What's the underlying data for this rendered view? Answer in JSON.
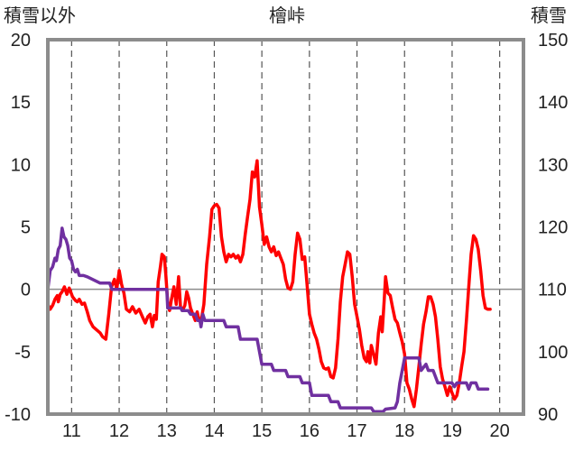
{
  "chart_data": {
    "type": "line",
    "title": "檜峠",
    "left_axis_label": "積雪以外",
    "right_axis_label": "積雪",
    "x_ticks": [
      "11",
      "12",
      "13",
      "14",
      "15",
      "16",
      "17",
      "18",
      "19",
      "20"
    ],
    "x_range": [
      10.5,
      20.5
    ],
    "y_left": {
      "range": [
        -10,
        20
      ],
      "ticks": [
        -10,
        -5,
        0,
        5,
        10,
        15,
        20
      ]
    },
    "y_right": {
      "range": [
        90,
        150
      ],
      "ticks": [
        90,
        100,
        110,
        120,
        130,
        140,
        150
      ]
    },
    "grid": {
      "vertical_dashed": true,
      "zero_line": true
    },
    "series": [
      {
        "axis": "left",
        "color": "#ff0000",
        "points": [
          [
            10.5,
            -1.2
          ],
          [
            10.55,
            -1.6
          ],
          [
            10.6,
            -1.3
          ],
          [
            10.65,
            -0.8
          ],
          [
            10.7,
            -0.5
          ],
          [
            10.72,
            -1.0
          ],
          [
            10.76,
            -0.4
          ],
          [
            10.8,
            -0.2
          ],
          [
            10.85,
            0.2
          ],
          [
            10.9,
            -0.4
          ],
          [
            10.95,
            0.1
          ],
          [
            10.98,
            -0.2
          ],
          [
            11.02,
            -0.6
          ],
          [
            11.08,
            -0.9
          ],
          [
            11.12,
            -1.0
          ],
          [
            11.16,
            -0.8
          ],
          [
            11.22,
            -1.2
          ],
          [
            11.27,
            -1.1
          ],
          [
            11.33,
            -1.8
          ],
          [
            11.38,
            -2.5
          ],
          [
            11.45,
            -3.0
          ],
          [
            11.6,
            -3.5
          ],
          [
            11.65,
            -3.8
          ],
          [
            11.72,
            -4.0
          ],
          [
            11.78,
            -2.0
          ],
          [
            11.84,
            0.2
          ],
          [
            11.9,
            0.8
          ],
          [
            11.95,
            0.0
          ],
          [
            12.0,
            1.5
          ],
          [
            12.05,
            0.4
          ],
          [
            12.1,
            -0.3
          ],
          [
            12.15,
            -1.6
          ],
          [
            12.22,
            -1.8
          ],
          [
            12.28,
            -1.4
          ],
          [
            12.35,
            -1.9
          ],
          [
            12.42,
            -1.6
          ],
          [
            12.5,
            -2.3
          ],
          [
            12.55,
            -2.7
          ],
          [
            12.6,
            -2.2
          ],
          [
            12.65,
            -2.0
          ],
          [
            12.7,
            -3.0
          ],
          [
            12.74,
            -2.1
          ],
          [
            12.78,
            -2.4
          ],
          [
            12.82,
            0.6
          ],
          [
            12.87,
            1.9
          ],
          [
            12.9,
            2.8
          ],
          [
            12.95,
            2.6
          ],
          [
            12.98,
            1.2
          ],
          [
            13.02,
            -1.0
          ],
          [
            13.06,
            -1.7
          ],
          [
            13.1,
            -0.8
          ],
          [
            13.15,
            0.2
          ],
          [
            13.2,
            -1.2
          ],
          [
            13.25,
            1.0
          ],
          [
            13.29,
            -1.4
          ],
          [
            13.33,
            -1.7
          ],
          [
            13.38,
            -1.3
          ],
          [
            13.42,
            -0.2
          ],
          [
            13.46,
            -0.7
          ],
          [
            13.5,
            -1.5
          ],
          [
            13.55,
            -2.0
          ],
          [
            13.6,
            -2.5
          ],
          [
            13.64,
            -1.8
          ],
          [
            13.68,
            -2.5
          ],
          [
            13.72,
            -2.6
          ],
          [
            13.78,
            -1.2
          ],
          [
            13.84,
            2.0
          ],
          [
            13.9,
            4.2
          ],
          [
            13.95,
            6.4
          ],
          [
            14.0,
            6.7
          ],
          [
            14.05,
            6.8
          ],
          [
            14.1,
            6.5
          ],
          [
            14.15,
            4.2
          ],
          [
            14.2,
            3.0
          ],
          [
            14.25,
            2.2
          ],
          [
            14.3,
            2.8
          ],
          [
            14.35,
            2.6
          ],
          [
            14.4,
            2.8
          ],
          [
            14.45,
            2.5
          ],
          [
            14.5,
            2.7
          ],
          [
            14.55,
            2.2
          ],
          [
            14.6,
            2.8
          ],
          [
            14.65,
            4.4
          ],
          [
            14.7,
            5.8
          ],
          [
            14.75,
            7.2
          ],
          [
            14.8,
            9.4
          ],
          [
            14.85,
            9.0
          ],
          [
            14.9,
            10.3
          ],
          [
            14.95,
            6.6
          ],
          [
            15.0,
            5.2
          ],
          [
            15.05,
            3.6
          ],
          [
            15.1,
            4.2
          ],
          [
            15.15,
            3.4
          ],
          [
            15.2,
            3.0
          ],
          [
            15.25,
            3.4
          ],
          [
            15.3,
            2.7
          ],
          [
            15.35,
            3.0
          ],
          [
            15.4,
            2.5
          ],
          [
            15.45,
            2.0
          ],
          [
            15.5,
            0.8
          ],
          [
            15.55,
            0.1
          ],
          [
            15.6,
            0.0
          ],
          [
            15.65,
            0.6
          ],
          [
            15.7,
            2.8
          ],
          [
            15.75,
            4.5
          ],
          [
            15.8,
            4.0
          ],
          [
            15.85,
            2.4
          ],
          [
            15.9,
            2.6
          ],
          [
            15.95,
            0.4
          ],
          [
            16.0,
            -2.0
          ],
          [
            16.05,
            -2.8
          ],
          [
            16.1,
            -3.5
          ],
          [
            16.15,
            -4.0
          ],
          [
            16.2,
            -4.8
          ],
          [
            16.25,
            -5.8
          ],
          [
            16.3,
            -6.3
          ],
          [
            16.35,
            -6.4
          ],
          [
            16.4,
            -6.3
          ],
          [
            16.45,
            -7.0
          ],
          [
            16.5,
            -7.1
          ],
          [
            16.55,
            -6.3
          ],
          [
            16.6,
            -4.0
          ],
          [
            16.65,
            -1.0
          ],
          [
            16.7,
            1.0
          ],
          [
            16.75,
            2.0
          ],
          [
            16.8,
            3.0
          ],
          [
            16.85,
            2.8
          ],
          [
            16.9,
            1.0
          ],
          [
            16.95,
            -1.2
          ],
          [
            17.0,
            -2.2
          ],
          [
            17.05,
            -3.2
          ],
          [
            17.1,
            -4.5
          ],
          [
            17.15,
            -5.5
          ],
          [
            17.2,
            -5.8
          ],
          [
            17.23,
            -5.0
          ],
          [
            17.27,
            -5.9
          ],
          [
            17.3,
            -4.5
          ],
          [
            17.35,
            -5.2
          ],
          [
            17.4,
            -6.0
          ],
          [
            17.45,
            -3.5
          ],
          [
            17.5,
            -2.2
          ],
          [
            17.53,
            -3.4
          ],
          [
            17.57,
            -1.0
          ],
          [
            17.6,
            1.0
          ],
          [
            17.65,
            -0.3
          ],
          [
            17.7,
            -0.5
          ],
          [
            17.75,
            -1.5
          ],
          [
            17.8,
            -2.4
          ],
          [
            17.85,
            -2.7
          ],
          [
            17.9,
            -3.5
          ],
          [
            17.95,
            -4.2
          ],
          [
            18.0,
            -5.2
          ],
          [
            18.05,
            -7.5
          ],
          [
            18.1,
            -8.0
          ],
          [
            18.15,
            -8.8
          ],
          [
            18.2,
            -9.4
          ],
          [
            18.25,
            -8.0
          ],
          [
            18.3,
            -6.2
          ],
          [
            18.35,
            -4.4
          ],
          [
            18.4,
            -2.8
          ],
          [
            18.45,
            -1.8
          ],
          [
            18.5,
            -0.6
          ],
          [
            18.55,
            -0.6
          ],
          [
            18.6,
            -1.2
          ],
          [
            18.65,
            -2.2
          ],
          [
            18.7,
            -4.0
          ],
          [
            18.75,
            -6.2
          ],
          [
            18.8,
            -7.2
          ],
          [
            18.85,
            -7.8
          ],
          [
            18.9,
            -8.5
          ],
          [
            18.95,
            -7.8
          ],
          [
            19.0,
            -8.3
          ],
          [
            19.05,
            -8.8
          ],
          [
            19.1,
            -8.5
          ],
          [
            19.15,
            -7.5
          ],
          [
            19.2,
            -6.2
          ],
          [
            19.25,
            -5.0
          ],
          [
            19.3,
            -2.5
          ],
          [
            19.35,
            0.2
          ],
          [
            19.4,
            2.8
          ],
          [
            19.45,
            4.3
          ],
          [
            19.5,
            4.0
          ],
          [
            19.55,
            3.2
          ],
          [
            19.6,
            1.5
          ],
          [
            19.65,
            -0.5
          ],
          [
            19.7,
            -1.5
          ],
          [
            19.75,
            -1.6
          ],
          [
            19.8,
            -1.6
          ]
        ]
      },
      {
        "axis": "left",
        "color": "#7030a0",
        "points": [
          [
            10.5,
            0.0
          ],
          [
            10.55,
            1.5
          ],
          [
            10.6,
            1.8
          ],
          [
            10.65,
            2.5
          ],
          [
            10.68,
            2.3
          ],
          [
            10.72,
            3.2
          ],
          [
            10.76,
            3.5
          ],
          [
            10.8,
            4.9
          ],
          [
            10.84,
            4.2
          ],
          [
            10.88,
            4.0
          ],
          [
            10.92,
            3.5
          ],
          [
            10.96,
            2.5
          ],
          [
            11.0,
            2.3
          ],
          [
            11.04,
            1.6
          ],
          [
            11.08,
            1.4
          ],
          [
            11.12,
            1.6
          ],
          [
            11.16,
            1.1
          ],
          [
            11.2,
            1.1
          ],
          [
            11.25,
            1.1
          ],
          [
            11.33,
            1.0
          ],
          [
            11.6,
            0.5
          ],
          [
            11.7,
            0.5
          ],
          [
            11.8,
            0.5
          ],
          [
            11.85,
            0.0
          ],
          [
            13.0,
            0.0
          ],
          [
            13.02,
            -1.5
          ],
          [
            13.3,
            -1.5
          ],
          [
            13.32,
            -1.7
          ],
          [
            13.45,
            -1.7
          ],
          [
            13.5,
            -2.0
          ],
          [
            13.6,
            -2.0
          ],
          [
            13.65,
            -2.5
          ],
          [
            13.7,
            -2.5
          ],
          [
            13.72,
            -3.0
          ],
          [
            13.76,
            -2.0
          ],
          [
            13.8,
            -2.5
          ],
          [
            14.2,
            -2.5
          ],
          [
            14.25,
            -3.0
          ],
          [
            14.5,
            -3.0
          ],
          [
            14.55,
            -4.0
          ],
          [
            14.9,
            -4.0
          ],
          [
            14.95,
            -5.0
          ],
          [
            15.0,
            -6.0
          ],
          [
            15.2,
            -6.0
          ],
          [
            15.25,
            -6.5
          ],
          [
            15.5,
            -6.5
          ],
          [
            15.55,
            -7.0
          ],
          [
            15.8,
            -7.0
          ],
          [
            15.85,
            -7.5
          ],
          [
            16.0,
            -7.5
          ],
          [
            16.05,
            -8.5
          ],
          [
            16.4,
            -8.5
          ],
          [
            16.45,
            -9.0
          ],
          [
            16.6,
            -9.0
          ],
          [
            16.65,
            -9.5
          ],
          [
            17.3,
            -9.5
          ],
          [
            17.35,
            -9.8
          ],
          [
            17.55,
            -9.8
          ],
          [
            17.6,
            -9.6
          ],
          [
            17.8,
            -9.5
          ],
          [
            17.85,
            -9.0
          ],
          [
            17.9,
            -7.5
          ],
          [
            18.0,
            -5.5
          ],
          [
            18.05,
            -5.5
          ],
          [
            18.1,
            -5.5
          ],
          [
            18.2,
            -5.5
          ],
          [
            18.3,
            -5.5
          ],
          [
            18.35,
            -6.5
          ],
          [
            18.45,
            -6.0
          ],
          [
            18.5,
            -6.5
          ],
          [
            18.6,
            -6.5
          ],
          [
            18.7,
            -7.5
          ],
          [
            19.0,
            -7.5
          ],
          [
            19.05,
            -7.8
          ],
          [
            19.1,
            -7.5
          ],
          [
            19.3,
            -7.5
          ],
          [
            19.35,
            -8.0
          ],
          [
            19.4,
            -7.5
          ],
          [
            19.5,
            -7.5
          ],
          [
            19.55,
            -8.0
          ],
          [
            19.75,
            -8.0
          ]
        ]
      }
    ]
  }
}
